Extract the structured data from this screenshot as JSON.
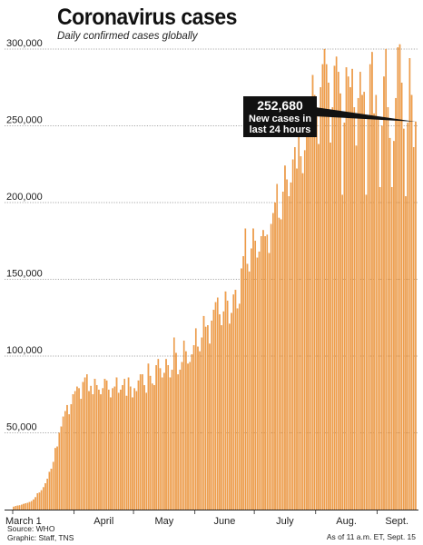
{
  "header": {
    "title": "Coronavirus cases",
    "subtitle": "Daily confirmed cases globally"
  },
  "footer": {
    "source": "Source: WHO",
    "graphic": "Graphic: Staff, TNS",
    "as_of": "As of 11 a.m. ET, Sept. 15"
  },
  "annotation": {
    "value": "252,680",
    "line1": "New cases in",
    "line2": "last 24 hours"
  },
  "colors": {
    "bar": "#f29f4b",
    "bar_edge": "#d97f22",
    "grid": "#8c8c8c",
    "annotation_bg": "#111111"
  },
  "chart_data": {
    "type": "bar",
    "x_start": "2020-03-01",
    "x_end": "2020-09-14",
    "ylim": [
      0,
      300000
    ],
    "yticks": [
      50000,
      100000,
      150000,
      200000,
      250000,
      300000
    ],
    "ytick_labels": [
      "50,000",
      "100,000",
      "150,000",
      "200,000",
      "250,000",
      "300,000"
    ],
    "month_labels": [
      {
        "label": "March 1",
        "date": "2020-03-01"
      },
      {
        "label": "April",
        "date": "2020-04-01"
      },
      {
        "label": "May",
        "date": "2020-05-01"
      },
      {
        "label": "June",
        "date": "2020-06-01"
      },
      {
        "label": "July",
        "date": "2020-07-01"
      },
      {
        "label": "Aug.",
        "date": "2020-08-01"
      },
      {
        "label": "Sept.",
        "date": "2020-09-01"
      }
    ],
    "xlabel": "",
    "ylabel": "",
    "grid": true,
    "values": [
      1800,
      2200,
      2500,
      2700,
      3100,
      3600,
      4000,
      4300,
      4800,
      5400,
      6500,
      8000,
      10500,
      11000,
      12500,
      14500,
      17000,
      20000,
      24500,
      26500,
      31000,
      40000,
      41000,
      50000,
      54000,
      60500,
      64000,
      68000,
      62000,
      68500,
      75000,
      77000,
      80000,
      79000,
      72000,
      83000,
      86000,
      88000,
      77000,
      80500,
      75000,
      85000,
      81000,
      78000,
      75000,
      79000,
      85000,
      84000,
      78000,
      73000,
      79000,
      80000,
      86000,
      76000,
      78000,
      81000,
      85000,
      74000,
      86000,
      80000,
      73000,
      79000,
      77000,
      84000,
      88000,
      88000,
      81000,
      76000,
      95000,
      87000,
      82000,
      81000,
      94000,
      98000,
      92000,
      86000,
      89000,
      98000,
      94000,
      86000,
      91000,
      112000,
      102000,
      88000,
      91000,
      96000,
      110000,
      103000,
      95000,
      96000,
      101000,
      107000,
      118000,
      106000,
      103000,
      112000,
      126000,
      119000,
      120000,
      108000,
      123000,
      130000,
      135000,
      138000,
      127000,
      120000,
      129000,
      142000,
      136000,
      121000,
      128000,
      140000,
      143000,
      131000,
      134000,
      157000,
      165000,
      183000,
      160000,
      155000,
      170000,
      183000,
      175000,
      164000,
      168000,
      178000,
      182000,
      178000,
      179000,
      167000,
      186000,
      193000,
      200000,
      212000,
      190000,
      189000,
      207000,
      224000,
      215000,
      204000,
      213000,
      228000,
      236000,
      222000,
      244000,
      230000,
      219000,
      234000,
      268000,
      255000,
      262000,
      283000,
      270000,
      262000,
      238000,
      275000,
      290000,
      300000,
      290000,
      278000,
      239000,
      262000,
      289000,
      295000,
      285000,
      271000,
      205000,
      252000,
      288000,
      282000,
      275000,
      287000,
      262000,
      237000,
      268000,
      285000,
      270000,
      272000,
      205000,
      255000,
      290000,
      298000,
      258000,
      270000,
      255000,
      210000,
      250000,
      282000,
      300000,
      262000,
      242000,
      210000,
      240000,
      268000,
      301000,
      303000,
      278000,
      248000,
      204000,
      252000,
      294000,
      270000,
      236000,
      252680
    ]
  }
}
